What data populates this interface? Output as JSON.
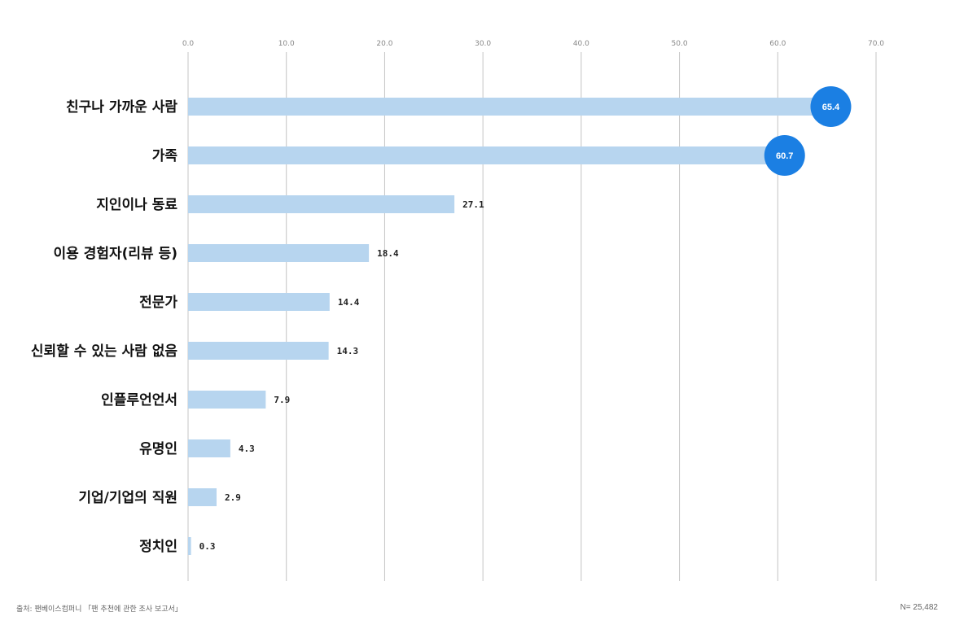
{
  "chart_data": {
    "type": "bar",
    "orientation": "horizontal",
    "title": "",
    "xlabel": "",
    "ylabel": "",
    "xlim": [
      0,
      70
    ],
    "x_ticks": [
      "0.0",
      "10.0",
      "20.0",
      "30.0",
      "40.0",
      "50.0",
      "60.0",
      "70.0"
    ],
    "tick_values": [
      0,
      10,
      20,
      30,
      40,
      50,
      60,
      70
    ],
    "grid": "vertical",
    "categories": [
      "친구나 가까운 사람",
      "가족",
      "지인이나 동료",
      "이용 경험자(리뷰 등)",
      "전문가",
      "신뢰할 수 있는 사람 없음",
      "인플루언언서",
      "유명인",
      "기업/기업의 직원",
      "정치인"
    ],
    "values": [
      65.4,
      60.7,
      27.1,
      18.4,
      14.4,
      14.3,
      7.9,
      4.3,
      2.9,
      0.3
    ],
    "value_labels": [
      "65.4",
      "60.7",
      "27.1",
      "18.4",
      "14.4",
      "14.3",
      "7.9",
      "4.3",
      "2.9",
      "0.3"
    ],
    "highlighted_indices": [
      0,
      1
    ],
    "colors": {
      "bar": "#b7d5ef",
      "highlight": "#1b7fe3",
      "grid": "#c4c4c4",
      "tick_text": "#888888",
      "category_text": "#111111",
      "value_text": "#222222"
    }
  },
  "footer": {
    "source": "출처: 팬베이스컴퍼니 「팬 추천에 관한 조사 보고서」",
    "sample": "N= 25,482"
  }
}
